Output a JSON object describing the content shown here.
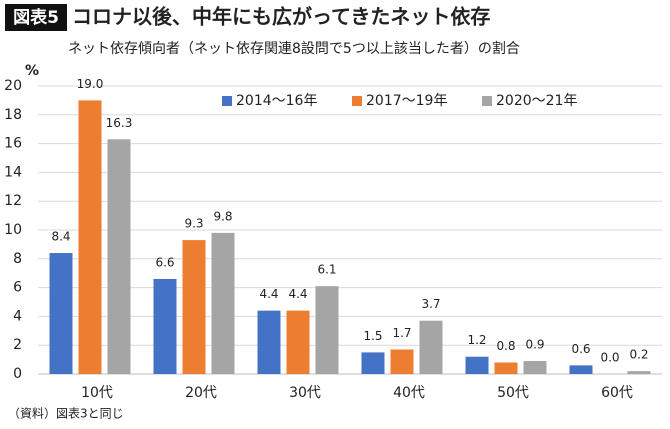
{
  "chart_data": {
    "type": "bar",
    "badge": "図表5",
    "title": "コロナ以後、中年にも広がってきたネット依存",
    "subtitle": "ネット依存傾向者（ネット依存関連8設問で5つ以上該当した者）の割合",
    "y_unit": "%",
    "source": "（資料）図表3と同じ",
    "categories": [
      "10代",
      "20代",
      "30代",
      "40代",
      "50代",
      "60代"
    ],
    "series": [
      {
        "name": "2014～16年",
        "color": "#4472c4",
        "values": [
          8.4,
          6.6,
          4.4,
          1.5,
          1.2,
          0.6
        ],
        "value_labels": [
          "8.4",
          "6.6",
          "4.4",
          "1.5",
          "1.2",
          "0.6"
        ]
      },
      {
        "name": "2017～19年",
        "color": "#ed7d31",
        "values": [
          19,
          9.3,
          4.4,
          1.7,
          0.8,
          0
        ],
        "value_labels": [
          "19.0",
          "9.3",
          "4.4",
          "1.7",
          "0.8",
          "0.0"
        ]
      },
      {
        "name": "2020～21年",
        "color": "#a5a5a5",
        "values": [
          16.3,
          9.8,
          6.1,
          3.7,
          0.9,
          0.2
        ],
        "value_labels": [
          "16.3",
          "9.8",
          "6.1",
          "3.7",
          "0.9",
          "0.2"
        ]
      }
    ],
    "ylim": [
      0,
      20
    ],
    "yticks": [
      0,
      2,
      4,
      6,
      8,
      10,
      12,
      14,
      16,
      18,
      20
    ],
    "grid": true
  }
}
